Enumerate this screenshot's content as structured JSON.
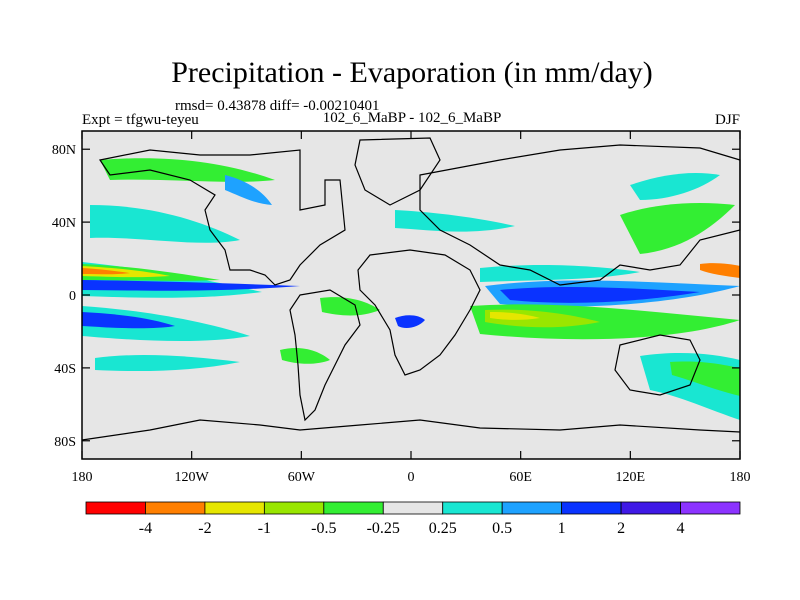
{
  "chart_data": {
    "type": "heatmap",
    "title": "Precipitation - Evaporation (in mm/day)",
    "stats": "rmsd= 0.43878 diff= -0.00210401",
    "left_label": "Expt = tfgwu-teyeu",
    "center_label": "102_6_MaBP - 102_6_MaBP",
    "right_label": "DJF",
    "xaxis": {
      "range": [
        -180,
        180
      ],
      "ticks": [
        -180,
        -120,
        -60,
        0,
        60,
        120,
        180
      ],
      "tick_labels": [
        "180",
        "120W",
        "60W",
        "0",
        "60E",
        "120E",
        "180"
      ]
    },
    "yaxis": {
      "range": [
        -90,
        90
      ],
      "ticks": [
        80,
        40,
        0,
        -40,
        -80
      ],
      "tick_labels": [
        "80N",
        "40N",
        "0",
        "40S",
        "80S"
      ]
    },
    "colorbar": {
      "colors": [
        "#ff0000",
        "#ff7f00",
        "#e6e600",
        "#99e600",
        "#33ee33",
        "#e6e6e6",
        "#19e6d2",
        "#1ea2ff",
        "#0a33ff",
        "#3f19e6",
        "#8c33ff"
      ],
      "labels": [
        "-4",
        "-2",
        "-1",
        "-0.5",
        "-0.25",
        "0.25",
        "0.5",
        "1",
        "2",
        "4"
      ]
    },
    "grid": false
  }
}
